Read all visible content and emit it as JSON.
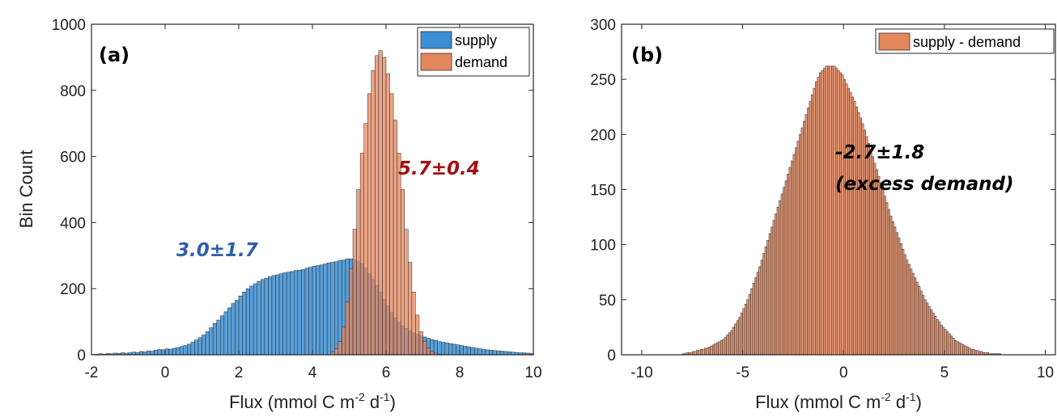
{
  "chart_data": [
    {
      "type": "histogram",
      "panel_label": "(a)",
      "xlabel": "Flux (mmol C m",
      "xlabel_sup1": "-2",
      "xlabel_mid": " d",
      "xlabel_sup2": "-1",
      "xlabel_end": ")",
      "ylabel": "Bin Count",
      "xlim": [
        -2,
        10
      ],
      "ylim": [
        0,
        1000
      ],
      "xticks": [
        -2,
        0,
        2,
        4,
        6,
        8,
        10
      ],
      "xtick_labels": [
        "-2",
        "0",
        "2",
        "4",
        "6",
        "8",
        "10"
      ],
      "yticks": [
        0,
        200,
        400,
        600,
        800,
        1000
      ],
      "ytick_labels": [
        "0",
        "200",
        "400",
        "600",
        "800",
        "1000"
      ],
      "legend_position": "top-right",
      "series": [
        {
          "name": "supply",
          "color": "#3b8fd4",
          "bin_width": 0.1,
          "bin_start": -2.0,
          "counts": [
            1,
            2,
            3,
            2,
            4,
            3,
            5,
            4,
            6,
            5,
            6,
            8,
            7,
            10,
            9,
            12,
            11,
            14,
            16,
            15,
            18,
            17,
            20,
            22,
            25,
            28,
            32,
            38,
            45,
            52,
            60,
            70,
            82,
            95,
            105,
            118,
            130,
            142,
            155,
            165,
            178,
            190,
            200,
            208,
            215,
            222,
            228,
            232,
            236,
            240,
            242,
            245,
            248,
            250,
            252,
            255,
            256,
            258,
            262,
            265,
            268,
            270,
            272,
            275,
            278,
            280,
            282,
            285,
            287,
            290,
            290,
            288,
            282,
            275,
            262,
            245,
            228,
            210,
            190,
            168,
            148,
            128,
            112,
            98,
            88,
            80,
            72,
            66,
            62,
            58,
            54,
            50,
            46,
            44,
            40,
            38,
            36,
            34,
            32,
            30,
            28,
            26,
            24,
            22,
            20,
            18,
            16,
            15,
            14,
            13,
            12,
            11,
            10,
            9,
            8,
            7,
            6,
            6,
            5,
            4,
            4
          ]
        },
        {
          "name": "demand",
          "color": "#e5865c",
          "bin_width": 0.1,
          "bin_start": 4.5,
          "counts": [
            8,
            18,
            40,
            85,
            160,
            260,
            380,
            500,
            610,
            700,
            790,
            860,
            905,
            920,
            900,
            850,
            790,
            710,
            610,
            500,
            380,
            280,
            190,
            120,
            70,
            40,
            20,
            10,
            5,
            2
          ]
        }
      ],
      "annotations": [
        {
          "text": "3.0±1.7",
          "color": "#2f5fa8"
        },
        {
          "text": "5.7±0.4",
          "color": "#a01010"
        }
      ]
    },
    {
      "type": "histogram",
      "panel_label": "(b)",
      "xlabel": "Flux (mmol C m",
      "xlabel_sup1": "-2",
      "xlabel_mid": " d",
      "xlabel_sup2": "-1",
      "xlabel_end": ")",
      "ylabel": "",
      "xlim": [
        -11,
        10.5
      ],
      "ylim": [
        0,
        300
      ],
      "xticks": [
        -10,
        -5,
        0,
        5,
        10
      ],
      "xtick_labels": [
        "-10",
        "-5",
        "0",
        "5",
        "10"
      ],
      "yticks": [
        0,
        50,
        100,
        150,
        200,
        250,
        300
      ],
      "ytick_labels": [
        "0",
        "50",
        "100",
        "150",
        "200",
        "250",
        "300"
      ],
      "legend_position": "top-right",
      "series": [
        {
          "name": "supply - demand",
          "color": "#e5865c",
          "bin_width": 0.1,
          "bin_start": -8.0,
          "counts": [
            1,
            1,
            2,
            2,
            2,
            3,
            3,
            4,
            4,
            5,
            5,
            6,
            6,
            7,
            8,
            9,
            10,
            11,
            12,
            13,
            14,
            16,
            18,
            20,
            22,
            25,
            28,
            31,
            34,
            38,
            42,
            46,
            50,
            55,
            60,
            65,
            70,
            75,
            80,
            86,
            92,
            98,
            104,
            110,
            116,
            122,
            128,
            134,
            140,
            146,
            152,
            158,
            164,
            170,
            176,
            182,
            188,
            194,
            200,
            206,
            212,
            218,
            224,
            230,
            236,
            242,
            248,
            252,
            256,
            258,
            260,
            262,
            262,
            262,
            262,
            262,
            260,
            258,
            256,
            254,
            250,
            246,
            242,
            238,
            234,
            230,
            225,
            220,
            215,
            210,
            204,
            198,
            192,
            186,
            180,
            174,
            168,
            162,
            156,
            150,
            144,
            138,
            132,
            126,
            121,
            116,
            111,
            106,
            101,
            96,
            91,
            86,
            82,
            78,
            74,
            70,
            66,
            62,
            58,
            54,
            50,
            47,
            44,
            41,
            38,
            35,
            32,
            30,
            27,
            25,
            23,
            21,
            19,
            17,
            15,
            13,
            12,
            11,
            10,
            9,
            8,
            7,
            6,
            5,
            5,
            4,
            4,
            3,
            3,
            2,
            2,
            2,
            1,
            1,
            1,
            1,
            1,
            1
          ]
        }
      ],
      "annotations": [
        {
          "text": "-2.7±1.8",
          "color": "#000000"
        },
        {
          "text": "(excess demand)",
          "color": "#000000"
        }
      ]
    }
  ]
}
